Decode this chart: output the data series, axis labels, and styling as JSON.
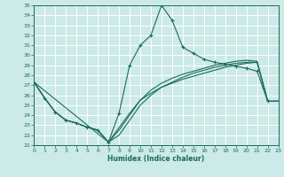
{
  "xlabel": "Humidex (Indice chaleur)",
  "ylabel": "",
  "xlim": [
    0,
    23
  ],
  "ylim": [
    21,
    35
  ],
  "yticks": [
    21,
    22,
    23,
    24,
    25,
    26,
    27,
    28,
    29,
    30,
    31,
    32,
    33,
    34,
    35
  ],
  "xticks": [
    0,
    1,
    2,
    3,
    4,
    5,
    6,
    7,
    8,
    9,
    10,
    11,
    12,
    13,
    14,
    15,
    16,
    17,
    18,
    19,
    20,
    21,
    22,
    23
  ],
  "bg_color": "#cceae7",
  "grid_color": "#ffffff",
  "line_color": "#1a6b5e",
  "line1_x": [
    0,
    1,
    2,
    3,
    4,
    5,
    6,
    7,
    8,
    9,
    10,
    11,
    12,
    13,
    14,
    15,
    16,
    17,
    18,
    19,
    20,
    21,
    22
  ],
  "line1_y": [
    27.3,
    25.7,
    24.3,
    23.5,
    23.2,
    22.8,
    22.5,
    21.3,
    24.2,
    29.0,
    31.0,
    32.0,
    35.0,
    33.5,
    30.8,
    30.2,
    29.6,
    29.3,
    29.1,
    28.9,
    28.7,
    28.4,
    25.4
  ],
  "line2_x": [
    0,
    1,
    2,
    3,
    4,
    5,
    6,
    7,
    8,
    9,
    10,
    11,
    12,
    13,
    14,
    15,
    16,
    17,
    18,
    19,
    20,
    21,
    22,
    23
  ],
  "line2_y": [
    27.3,
    25.7,
    24.3,
    23.5,
    23.2,
    22.8,
    22.5,
    21.3,
    22.0,
    23.5,
    25.0,
    26.0,
    26.8,
    27.3,
    27.8,
    28.2,
    28.5,
    28.8,
    29.0,
    29.2,
    29.3,
    29.3,
    25.4,
    25.4
  ],
  "line3_x": [
    0,
    1,
    2,
    3,
    4,
    5,
    6,
    7,
    8,
    9,
    10,
    11,
    12,
    13,
    14,
    15,
    16,
    17,
    18,
    19,
    20,
    21,
    22,
    23
  ],
  "line3_y": [
    27.3,
    25.7,
    24.3,
    23.5,
    23.2,
    22.8,
    22.5,
    21.3,
    22.5,
    24.0,
    25.5,
    26.5,
    27.2,
    27.7,
    28.1,
    28.4,
    28.7,
    29.0,
    29.2,
    29.4,
    29.5,
    29.4,
    25.4,
    25.4
  ],
  "line4_x": [
    0,
    7,
    9,
    10,
    11,
    12,
    13,
    14,
    15,
    16,
    17,
    18,
    19,
    20,
    21,
    22,
    23
  ],
  "line4_y": [
    27.3,
    21.3,
    24.2,
    25.5,
    26.2,
    26.8,
    27.2,
    27.6,
    27.9,
    28.2,
    28.5,
    28.8,
    29.0,
    29.2,
    29.3,
    25.4,
    25.4
  ]
}
